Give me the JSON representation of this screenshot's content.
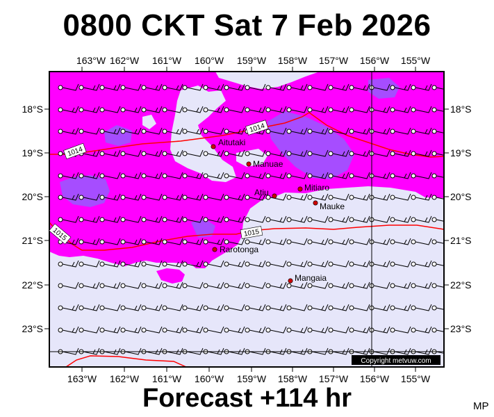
{
  "title": "0800 CKT Sat 7 Feb 2026",
  "footer": "Forecast +114 hr",
  "credit": "MP",
  "copyright": "Copyright metvuw.com",
  "colors": {
    "background": "#e6e6fa",
    "high_rain": "#ff00ff",
    "very_high_rain": "#9b30ff",
    "isobar": "#ff0000",
    "location": "#cc0000"
  },
  "lon_labels": [
    "163°W",
    "162°W",
    "161°W",
    "160°W",
    "159°W",
    "158°W",
    "157°W",
    "156°W",
    "155°W"
  ],
  "lat_labels": [
    "18°S",
    "19°S",
    "20°S",
    "21°S",
    "22°S",
    "23°S"
  ],
  "places": [
    {
      "name": "Aitutaki",
      "lon": -159.79,
      "lat": -18.86
    },
    {
      "name": "Manuae",
      "lon": -158.96,
      "lat": -19.26
    },
    {
      "name": "Atiu",
      "lon": -158.12,
      "lat": -19.99
    },
    {
      "name": "Mitiaro",
      "lon": -157.7,
      "lat": -19.87
    },
    {
      "name": "Mauke",
      "lon": -157.34,
      "lat": -20.15
    },
    {
      "name": "Rarotonga",
      "lon": -159.78,
      "lat": -21.23
    },
    {
      "name": "Mangaia",
      "lon": -157.9,
      "lat": -21.92
    }
  ],
  "isobars": [
    {
      "label": "1014",
      "unit": "hPa"
    },
    {
      "label": "1015",
      "unit": "hPa"
    }
  ]
}
